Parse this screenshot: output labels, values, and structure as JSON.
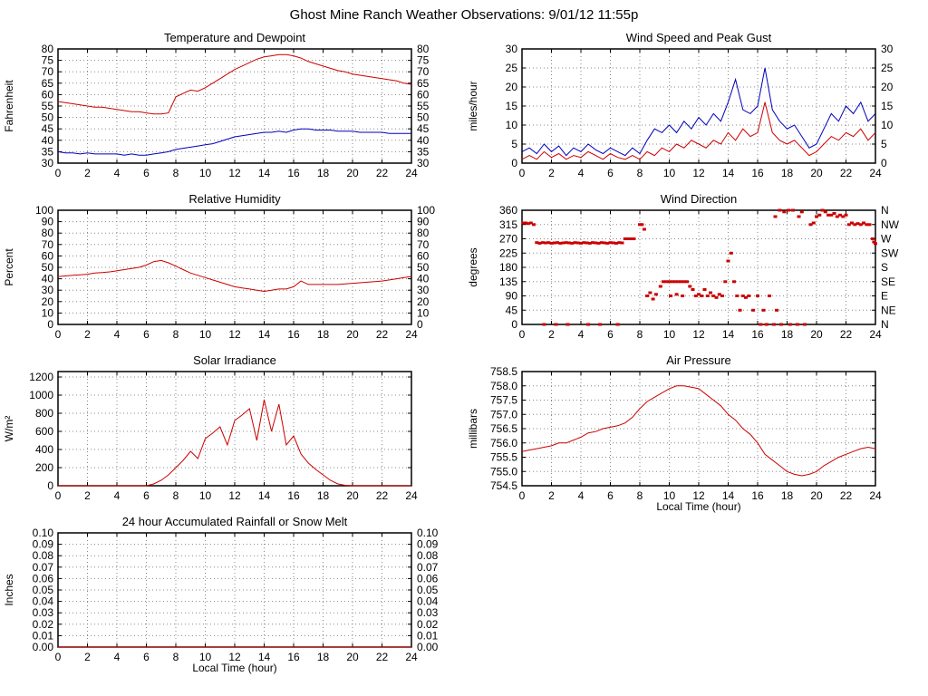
{
  "page_title": "Ghost Mine Ranch Weather Observations: 9/01/12 11:55p",
  "colors": {
    "red": "#cc0000",
    "blue": "#0000bb"
  },
  "chart_data": [
    {
      "id": "temperature",
      "type": "line",
      "title": "Temperature and Dewpoint",
      "ylabel": "Fahrenheit",
      "xlabel": "",
      "xlim": [
        0,
        24
      ],
      "xticks": [
        0,
        2,
        4,
        6,
        8,
        10,
        12,
        14,
        16,
        18,
        20,
        22,
        24
      ],
      "ylim": [
        30,
        80
      ],
      "ytick_values": [
        30,
        35,
        40,
        45,
        50,
        55,
        60,
        65,
        70,
        75,
        80
      ],
      "ytick_labels": [
        "30",
        "35",
        "40",
        "45",
        "50",
        "55",
        "60",
        "65",
        "70",
        "75",
        "80"
      ],
      "right_labels": true,
      "x_step": 0.5,
      "series": [
        {
          "name": "Temperature",
          "color": "#cc0000",
          "values": [
            57,
            56.5,
            56,
            55.5,
            55,
            54.5,
            54.5,
            54,
            53.5,
            53,
            52.5,
            52.5,
            52,
            51.5,
            51.5,
            52,
            59,
            60.5,
            62,
            61.5,
            63,
            65,
            67,
            69,
            71,
            72.5,
            74,
            75.5,
            76.5,
            77,
            77.5,
            77.5,
            77,
            76,
            74.5,
            73.5,
            72.5,
            71.5,
            70.5,
            70,
            69,
            68.5,
            68,
            67.5,
            67,
            66.5,
            66,
            65,
            64.5
          ]
        },
        {
          "name": "Dewpoint",
          "color": "#0000bb",
          "values": [
            35,
            34.5,
            34.5,
            34,
            34.5,
            34,
            34,
            34,
            34,
            33.5,
            34,
            33.5,
            33.5,
            34,
            34.5,
            35,
            36,
            36.5,
            37,
            37.5,
            38,
            38.5,
            39.5,
            40.5,
            41.5,
            42,
            42.5,
            43,
            43.5,
            43.5,
            44,
            43.5,
            44.5,
            45,
            45,
            44.5,
            44.5,
            44.5,
            44,
            44,
            44,
            43.5,
            43.5,
            43.5,
            43.5,
            43,
            43,
            43,
            43
          ]
        }
      ]
    },
    {
      "id": "wind_speed",
      "type": "line",
      "title": "Wind Speed and Peak Gust",
      "ylabel": "miles/hour",
      "xlabel": "",
      "xlim": [
        0,
        24
      ],
      "xticks": [
        0,
        2,
        4,
        6,
        8,
        10,
        12,
        14,
        16,
        18,
        20,
        22,
        24
      ],
      "ylim": [
        0,
        30
      ],
      "ytick_values": [
        0,
        5,
        10,
        15,
        20,
        25,
        30
      ],
      "ytick_labels": [
        "0",
        "5",
        "10",
        "15",
        "20",
        "25",
        "30"
      ],
      "right_labels": true,
      "x_step": 0.5,
      "series": [
        {
          "name": "Peak Gust",
          "color": "#0000bb",
          "values": [
            3,
            4,
            2.5,
            5,
            3,
            4.5,
            2,
            4,
            3,
            5,
            3.5,
            2.5,
            4,
            3,
            2,
            4,
            2.5,
            6,
            9,
            8,
            10,
            8,
            11,
            9,
            12,
            10,
            13,
            11,
            16,
            22,
            14,
            13,
            15,
            25,
            14,
            11,
            9,
            10,
            7,
            4,
            5,
            9,
            13,
            11,
            15,
            13,
            16,
            11,
            13
          ]
        },
        {
          "name": "Wind Speed",
          "color": "#cc0000",
          "values": [
            1,
            2,
            1,
            3,
            1.5,
            2.5,
            1,
            2,
            1.5,
            3,
            2,
            1,
            2.5,
            1.5,
            1,
            2,
            1,
            3,
            2,
            4,
            3,
            5,
            4,
            6,
            5,
            4,
            6,
            5,
            8,
            6,
            9,
            7,
            8,
            16,
            8,
            6,
            5,
            6,
            4,
            2,
            3,
            5,
            7,
            6,
            8,
            7,
            9,
            6,
            8
          ]
        }
      ]
    },
    {
      "id": "humidity",
      "type": "line",
      "title": "Relative Humidity",
      "ylabel": "Percent",
      "xlabel": "",
      "xlim": [
        0,
        24
      ],
      "xticks": [
        0,
        2,
        4,
        6,
        8,
        10,
        12,
        14,
        16,
        18,
        20,
        22,
        24
      ],
      "ylim": [
        0,
        100
      ],
      "ytick_values": [
        0,
        10,
        20,
        30,
        40,
        50,
        60,
        70,
        80,
        90,
        100
      ],
      "ytick_labels": [
        "0",
        "10",
        "20",
        "30",
        "40",
        "50",
        "60",
        "70",
        "80",
        "90",
        "100"
      ],
      "right_labels": true,
      "x_step": 0.5,
      "series": [
        {
          "name": "Relative Humidity",
          "color": "#cc0000",
          "values": [
            42,
            42.5,
            43,
            43.5,
            44,
            45,
            45.5,
            46,
            47,
            48,
            49,
            50,
            52,
            55,
            56,
            54,
            51,
            48,
            45,
            43,
            41,
            39,
            37,
            35,
            33,
            32,
            31,
            30,
            29,
            30,
            31,
            31,
            33,
            38,
            35,
            35,
            35,
            35,
            35,
            35.5,
            36,
            36.5,
            37,
            37.5,
            38,
            39,
            40,
            41,
            42
          ]
        }
      ]
    },
    {
      "id": "wind_direction",
      "type": "scatter",
      "title": "Wind Direction",
      "ylabel": "degrees",
      "xlabel": "",
      "xlim": [
        0,
        24
      ],
      "xticks": [
        0,
        2,
        4,
        6,
        8,
        10,
        12,
        14,
        16,
        18,
        20,
        22,
        24
      ],
      "ylim": [
        0,
        360
      ],
      "ytick_values": [
        0,
        45,
        90,
        135,
        180,
        225,
        270,
        315,
        360
      ],
      "ytick_labels": [
        "0",
        "45",
        "90",
        "135",
        "180",
        "225",
        "270",
        "315",
        "360"
      ],
      "right_labels": [
        "N",
        "NE",
        "E",
        "SE",
        "S",
        "SW",
        "W",
        "NW",
        "N"
      ],
      "point_color": "#cc0000",
      "points": [
        [
          0.1,
          320
        ],
        [
          0.25,
          320
        ],
        [
          0.4,
          318
        ],
        [
          0.6,
          320
        ],
        [
          0.8,
          315
        ],
        [
          1.0,
          258
        ],
        [
          1.2,
          256
        ],
        [
          1.4,
          258
        ],
        [
          1.6,
          257
        ],
        [
          1.8,
          258
        ],
        [
          2.0,
          256
        ],
        [
          2.2,
          257
        ],
        [
          2.4,
          258
        ],
        [
          2.6,
          256
        ],
        [
          2.8,
          257
        ],
        [
          3.0,
          258
        ],
        [
          3.2,
          257
        ],
        [
          3.4,
          256
        ],
        [
          3.6,
          258
        ],
        [
          3.8,
          257
        ],
        [
          4.0,
          256
        ],
        [
          4.2,
          258
        ],
        [
          4.4,
          257
        ],
        [
          4.6,
          256
        ],
        [
          4.8,
          258
        ],
        [
          5.0,
          257
        ],
        [
          5.2,
          256
        ],
        [
          5.4,
          258
        ],
        [
          5.6,
          257
        ],
        [
          5.8,
          256
        ],
        [
          6.0,
          258
        ],
        [
          6.2,
          257
        ],
        [
          6.4,
          256
        ],
        [
          6.6,
          258
        ],
        [
          6.8,
          257
        ],
        [
          1.5,
          0
        ],
        [
          2.3,
          0
        ],
        [
          3.1,
          0
        ],
        [
          4.5,
          0
        ],
        [
          5.3,
          0
        ],
        [
          6.5,
          0
        ],
        [
          7.0,
          270
        ],
        [
          7.2,
          270
        ],
        [
          7.4,
          270
        ],
        [
          7.6,
          270
        ],
        [
          8.0,
          315
        ],
        [
          8.15,
          315
        ],
        [
          8.3,
          300
        ],
        [
          8.5,
          90
        ],
        [
          8.7,
          100
        ],
        [
          8.9,
          80
        ],
        [
          9.1,
          95
        ],
        [
          9.4,
          120
        ],
        [
          9.6,
          135
        ],
        [
          9.8,
          135
        ],
        [
          10.0,
          135
        ],
        [
          10.2,
          135
        ],
        [
          10.4,
          135
        ],
        [
          10.6,
          135
        ],
        [
          10.8,
          135
        ],
        [
          11.0,
          135
        ],
        [
          11.2,
          135
        ],
        [
          10.1,
          90
        ],
        [
          10.5,
          95
        ],
        [
          10.9,
          90
        ],
        [
          11.4,
          120
        ],
        [
          11.6,
          110
        ],
        [
          11.8,
          90
        ],
        [
          12.0,
          95
        ],
        [
          12.2,
          90
        ],
        [
          12.4,
          110
        ],
        [
          12.6,
          90
        ],
        [
          12.8,
          100
        ],
        [
          13.0,
          90
        ],
        [
          13.2,
          85
        ],
        [
          13.4,
          95
        ],
        [
          13.6,
          90
        ],
        [
          13.8,
          135
        ],
        [
          14.0,
          200
        ],
        [
          14.2,
          225
        ],
        [
          14.4,
          135
        ],
        [
          14.6,
          90
        ],
        [
          14.8,
          45
        ],
        [
          15.0,
          90
        ],
        [
          15.2,
          85
        ],
        [
          15.4,
          90
        ],
        [
          15.7,
          45
        ],
        [
          16.0,
          90
        ],
        [
          16.2,
          0
        ],
        [
          16.6,
          0
        ],
        [
          17.1,
          0
        ],
        [
          17.6,
          0
        ],
        [
          18.2,
          0
        ],
        [
          18.7,
          0
        ],
        [
          19.2,
          0
        ],
        [
          16.4,
          45
        ],
        [
          16.8,
          90
        ],
        [
          17.3,
          45
        ],
        [
          17.2,
          340
        ],
        [
          17.5,
          360
        ],
        [
          17.8,
          355
        ],
        [
          18.1,
          360
        ],
        [
          18.4,
          360
        ],
        [
          18.8,
          340
        ],
        [
          19.0,
          355
        ],
        [
          19.6,
          315
        ],
        [
          19.8,
          320
        ],
        [
          20.0,
          340
        ],
        [
          20.2,
          345
        ],
        [
          20.4,
          360
        ],
        [
          20.6,
          355
        ],
        [
          20.8,
          345
        ],
        [
          21.0,
          345
        ],
        [
          21.2,
          350
        ],
        [
          21.4,
          340
        ],
        [
          21.6,
          345
        ],
        [
          21.8,
          340
        ],
        [
          22.0,
          345
        ],
        [
          22.2,
          315
        ],
        [
          22.4,
          320
        ],
        [
          22.6,
          315
        ],
        [
          22.8,
          318
        ],
        [
          23.0,
          315
        ],
        [
          23.2,
          320
        ],
        [
          23.4,
          315
        ],
        [
          23.6,
          315
        ],
        [
          23.8,
          270
        ],
        [
          23.9,
          260
        ],
        [
          24.0,
          255
        ]
      ]
    },
    {
      "id": "solar",
      "type": "line",
      "title": "Solar Irradiance",
      "ylabel": "W/m²",
      "xlabel": "",
      "xlim": [
        0,
        24
      ],
      "xticks": [
        0,
        2,
        4,
        6,
        8,
        10,
        12,
        14,
        16,
        18,
        20,
        22,
        24
      ],
      "ylim": [
        0,
        1260
      ],
      "ytick_values": [
        0,
        200,
        400,
        600,
        800,
        1000,
        1200
      ],
      "ytick_labels": [
        "0",
        "200",
        "400",
        "600",
        "800",
        "1000",
        "1200"
      ],
      "right_labels": false,
      "x_step": 0.5,
      "series": [
        {
          "name": "Solar Irradiance",
          "color": "#cc0000",
          "values": [
            0,
            0,
            0,
            0,
            0,
            0,
            0,
            0,
            0,
            0,
            0,
            0,
            0,
            20,
            60,
            120,
            200,
            280,
            380,
            300,
            520,
            580,
            650,
            450,
            720,
            780,
            850,
            500,
            950,
            600,
            900,
            450,
            550,
            350,
            250,
            180,
            120,
            60,
            20,
            5,
            0,
            0,
            0,
            0,
            0,
            0,
            0,
            0,
            0
          ]
        }
      ]
    },
    {
      "id": "pressure",
      "type": "line",
      "title": "Air Pressure",
      "ylabel": "millibars",
      "xlabel": "Local Time (hour)",
      "xlim": [
        0,
        24
      ],
      "xticks": [
        0,
        2,
        4,
        6,
        8,
        10,
        12,
        14,
        16,
        18,
        20,
        22,
        24
      ],
      "ylim": [
        754.5,
        758.5
      ],
      "ytick_values": [
        754.5,
        755.0,
        755.5,
        756.0,
        756.5,
        757.0,
        757.5,
        758.0,
        758.5
      ],
      "ytick_labels": [
        "754.5",
        "755.0",
        "755.5",
        "756.0",
        "756.5",
        "757.0",
        "757.5",
        "758.0",
        "758.5"
      ],
      "right_labels": false,
      "x_step": 0.5,
      "series": [
        {
          "name": "Air Pressure",
          "color": "#cc0000",
          "values": [
            755.7,
            755.75,
            755.8,
            755.85,
            755.9,
            756.0,
            756.0,
            756.1,
            756.2,
            756.35,
            756.4,
            756.5,
            756.55,
            756.6,
            756.7,
            756.9,
            757.2,
            757.45,
            757.6,
            757.75,
            757.9,
            758.0,
            758.0,
            757.95,
            757.9,
            757.7,
            757.5,
            757.3,
            757.0,
            756.8,
            756.5,
            756.3,
            756.0,
            755.6,
            755.4,
            755.2,
            755.0,
            754.9,
            754.85,
            754.9,
            755.0,
            755.2,
            755.35,
            755.5,
            755.6,
            755.7,
            755.8,
            755.85,
            755.8
          ]
        }
      ]
    },
    {
      "id": "rainfall",
      "type": "line",
      "title": "24 hour Accumulated Rainfall or Snow Melt",
      "ylabel": "Inches",
      "xlabel": "Local Time (hour)",
      "xlim": [
        0,
        24
      ],
      "xticks": [
        0,
        2,
        4,
        6,
        8,
        10,
        12,
        14,
        16,
        18,
        20,
        22,
        24
      ],
      "ylim": [
        0,
        0.1
      ],
      "ytick_values": [
        0,
        0.01,
        0.02,
        0.03,
        0.04,
        0.05,
        0.06,
        0.07,
        0.08,
        0.09,
        0.1
      ],
      "ytick_labels": [
        "0.00",
        "0.01",
        "0.02",
        "0.03",
        "0.04",
        "0.05",
        "0.06",
        "0.07",
        "0.08",
        "0.09",
        "0.10"
      ],
      "right_labels": true,
      "x_step": 0.5,
      "series": [
        {
          "name": "Accumulated Rainfall",
          "color": "#cc0000",
          "values": [
            0,
            0,
            0,
            0,
            0,
            0,
            0,
            0,
            0,
            0,
            0,
            0,
            0,
            0,
            0,
            0,
            0,
            0,
            0,
            0,
            0,
            0,
            0,
            0,
            0,
            0,
            0,
            0,
            0,
            0,
            0,
            0,
            0,
            0,
            0,
            0,
            0,
            0,
            0,
            0,
            0,
            0,
            0,
            0,
            0,
            0,
            0,
            0,
            0
          ]
        }
      ]
    }
  ]
}
